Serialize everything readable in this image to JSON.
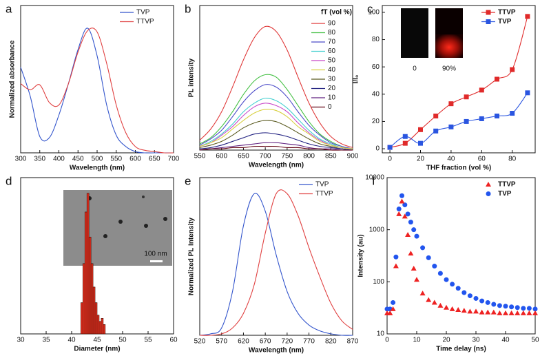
{
  "chart_data": [
    {
      "type": "line",
      "panel_label": "a",
      "x_label": "Wavelength (nm)",
      "y_label": "Normalized absorbance",
      "x": [
        300,
        325,
        350,
        375,
        400,
        425,
        450,
        475,
        500,
        525,
        550,
        575,
        600,
        625,
        650,
        675,
        700
      ],
      "series": [
        {
          "name": "TVP",
          "color": "#3355cc",
          "values": [
            0.68,
            0.45,
            0.13,
            0.12,
            0.3,
            0.55,
            0.82,
            0.99,
            0.77,
            0.38,
            0.14,
            0.05,
            0.01,
            0,
            0,
            0,
            0
          ]
        },
        {
          "name": "TTVP",
          "color": "#e04040",
          "values": [
            0.55,
            0.5,
            0.54,
            0.4,
            0.38,
            0.55,
            0.8,
            0.97,
            0.96,
            0.71,
            0.38,
            0.16,
            0.05,
            0.02,
            0.01,
            0,
            0
          ]
        }
      ],
      "xlim": [
        300,
        700
      ],
      "xticks": [
        300,
        350,
        400,
        450,
        500,
        550,
        600,
        650,
        700
      ],
      "ylim": [
        0,
        1.17
      ],
      "legend": "upper right"
    },
    {
      "type": "line",
      "panel_label": "b",
      "x_label": "Wavelength (nm)",
      "y_label": "PL intensity",
      "legend_title": "fT (vol %)",
      "x": [
        550,
        575,
        600,
        625,
        650,
        675,
        700,
        725,
        750,
        775,
        800,
        825,
        850,
        875,
        900
      ],
      "series": [
        {
          "name": "90",
          "color": "#e03a3a",
          "values": [
            0.08,
            0.17,
            0.31,
            0.51,
            0.73,
            0.91,
            1.0,
            0.96,
            0.81,
            0.59,
            0.38,
            0.22,
            0.11,
            0.05,
            0.02
          ]
        },
        {
          "name": "80",
          "color": "#44c044",
          "values": [
            0.05,
            0.1,
            0.19,
            0.31,
            0.45,
            0.56,
            0.61,
            0.59,
            0.49,
            0.36,
            0.23,
            0.13,
            0.07,
            0.03,
            0.01
          ]
        },
        {
          "name": "70",
          "color": "#4a4ac8",
          "values": [
            0.04,
            0.09,
            0.16,
            0.27,
            0.39,
            0.48,
            0.53,
            0.51,
            0.43,
            0.31,
            0.2,
            0.12,
            0.06,
            0.03,
            0.01
          ]
        },
        {
          "name": "60",
          "color": "#44d0d0",
          "values": [
            0.03,
            0.07,
            0.13,
            0.21,
            0.31,
            0.38,
            0.42,
            0.4,
            0.34,
            0.25,
            0.16,
            0.09,
            0.05,
            0.02,
            0.01
          ]
        },
        {
          "name": "50",
          "color": "#c848c8",
          "values": [
            0.03,
            0.06,
            0.12,
            0.19,
            0.28,
            0.35,
            0.38,
            0.36,
            0.31,
            0.22,
            0.14,
            0.08,
            0.04,
            0.02,
            0.01
          ]
        },
        {
          "name": "40",
          "color": "#d8d040",
          "values": [
            0.03,
            0.06,
            0.1,
            0.17,
            0.24,
            0.3,
            0.33,
            0.32,
            0.27,
            0.19,
            0.13,
            0.07,
            0.04,
            0.02,
            0.01
          ]
        },
        {
          "name": "30",
          "color": "#5a5a20",
          "values": [
            0.02,
            0.04,
            0.07,
            0.12,
            0.18,
            0.22,
            0.24,
            0.23,
            0.19,
            0.14,
            0.09,
            0.05,
            0.03,
            0.01,
            0
          ]
        },
        {
          "name": "20",
          "color": "#202080",
          "values": [
            0.01,
            0.02,
            0.04,
            0.07,
            0.1,
            0.13,
            0.14,
            0.13,
            0.11,
            0.08,
            0.05,
            0.03,
            0.02,
            0.01,
            0
          ]
        },
        {
          "name": "10",
          "color": "#602080",
          "values": [
            0,
            0.01,
            0.02,
            0.03,
            0.04,
            0.05,
            0.06,
            0.06,
            0.05,
            0.04,
            0.02,
            0.01,
            0.01,
            0,
            0
          ]
        },
        {
          "name": "0",
          "color": "#600010",
          "values": [
            0,
            0.01,
            0.01,
            0.02,
            0.02,
            0.03,
            0.03,
            0.03,
            0.02,
            0.02,
            0.01,
            0.01,
            0,
            0,
            0
          ]
        }
      ],
      "xlim": [
        550,
        900
      ],
      "xticks": [
        550,
        600,
        650,
        700,
        750,
        800,
        850,
        900
      ],
      "ylim": [
        0,
        1.17
      ],
      "legend": "upper right"
    },
    {
      "type": "line",
      "markers": true,
      "panel_label": "c",
      "x_label": "THF fraction (vol %)",
      "y_label": "I/I₀",
      "x": [
        0,
        10,
        20,
        30,
        40,
        50,
        60,
        70,
        80,
        90
      ],
      "series": [
        {
          "name": "TTVP",
          "color": "#e02a2a",
          "values": [
            1,
            4,
            14,
            24,
            33,
            38,
            43,
            51,
            58,
            97
          ]
        },
        {
          "name": "TVP",
          "color": "#2a55e0",
          "values": [
            1,
            9,
            4,
            13,
            16,
            20,
            22,
            24,
            26,
            41
          ]
        }
      ],
      "annotations": [
        "0",
        "90%"
      ],
      "xlim": [
        -5,
        95
      ],
      "xticks": [
        0,
        20,
        40,
        60,
        80
      ],
      "ylim": [
        -3,
        105
      ],
      "yticks": [
        0,
        20,
        40,
        60,
        80,
        100
      ],
      "legend": "upper right"
    },
    {
      "type": "histogram",
      "panel_label": "d",
      "x_label": "Diameter (nm)",
      "color": "#e03020",
      "bins": [
        41.8,
        42.2,
        42.6,
        43.0,
        43.4,
        43.8,
        44.2,
        44.6,
        45.0,
        45.4,
        45.8,
        46.2,
        46.6
      ],
      "values": [
        20,
        45,
        78,
        90,
        62,
        45,
        30,
        20,
        12,
        8,
        10,
        6
      ],
      "annotations": [
        "100 nm"
      ],
      "xlim": [
        30,
        60
      ],
      "xticks": [
        30,
        35,
        40,
        45,
        50,
        55,
        60
      ],
      "ylim": [
        0,
        100
      ]
    },
    {
      "type": "line",
      "panel_label": "e",
      "x_label": "Wavelength (nm)",
      "y_label": "Normalized PL Intensity",
      "x": [
        520,
        545,
        570,
        595,
        620,
        645,
        670,
        695,
        720,
        745,
        770,
        795,
        820,
        845,
        870
      ],
      "series": [
        {
          "name": "TVP",
          "color": "#3355cc",
          "values": [
            0,
            0.01,
            0.05,
            0.3,
            0.75,
            0.97,
            0.85,
            0.55,
            0.3,
            0.15,
            0.07,
            0.03,
            0.01,
            0,
            0
          ]
        },
        {
          "name": "TTVP",
          "color": "#e04040",
          "values": [
            0,
            0,
            0.01,
            0.05,
            0.15,
            0.35,
            0.7,
            0.97,
            0.97,
            0.82,
            0.6,
            0.4,
            0.22,
            0.1,
            0.04
          ]
        }
      ],
      "xlim": [
        520,
        870
      ],
      "xticks": [
        520,
        570,
        620,
        670,
        720,
        770,
        820,
        870
      ],
      "ylim": [
        0,
        1.08
      ],
      "legend": "upper right"
    },
    {
      "type": "scatter",
      "panel_label": "f",
      "x_label": "Time delay (ns)",
      "y_label": "Intensity (au)",
      "log_y": true,
      "x": [
        0,
        1,
        2,
        3,
        4,
        5,
        6,
        7,
        8,
        9,
        10,
        12,
        14,
        16,
        18,
        20,
        22,
        24,
        26,
        28,
        30,
        32,
        34,
        36,
        38,
        40,
        42,
        44,
        46,
        48,
        50
      ],
      "series": [
        {
          "name": "TTVP",
          "color": "#ee2222",
          "marker": "triangle",
          "values": [
            25,
            25,
            30,
            200,
            2000,
            3500,
            1800,
            800,
            350,
            180,
            110,
            60,
            45,
            40,
            35,
            32,
            30,
            29,
            28,
            27,
            27,
            26,
            26,
            26,
            25,
            25,
            25,
            25,
            25,
            25,
            25
          ]
        },
        {
          "name": "TVP",
          "color": "#2255ee",
          "marker": "circle",
          "values": [
            30,
            30,
            40,
            300,
            2500,
            4500,
            3000,
            2000,
            1400,
            1000,
            750,
            450,
            290,
            200,
            145,
            110,
            90,
            75,
            62,
            54,
            48,
            43,
            40,
            37,
            35,
            34,
            33,
            32,
            31,
            31,
            30
          ]
        }
      ],
      "xlim": [
        0,
        50
      ],
      "xticks": [
        0,
        10,
        20,
        30,
        40,
        50
      ],
      "ylim": [
        10,
        10000
      ],
      "yticks": [
        10,
        100,
        1000,
        10000
      ],
      "legend": "upper right"
    }
  ]
}
